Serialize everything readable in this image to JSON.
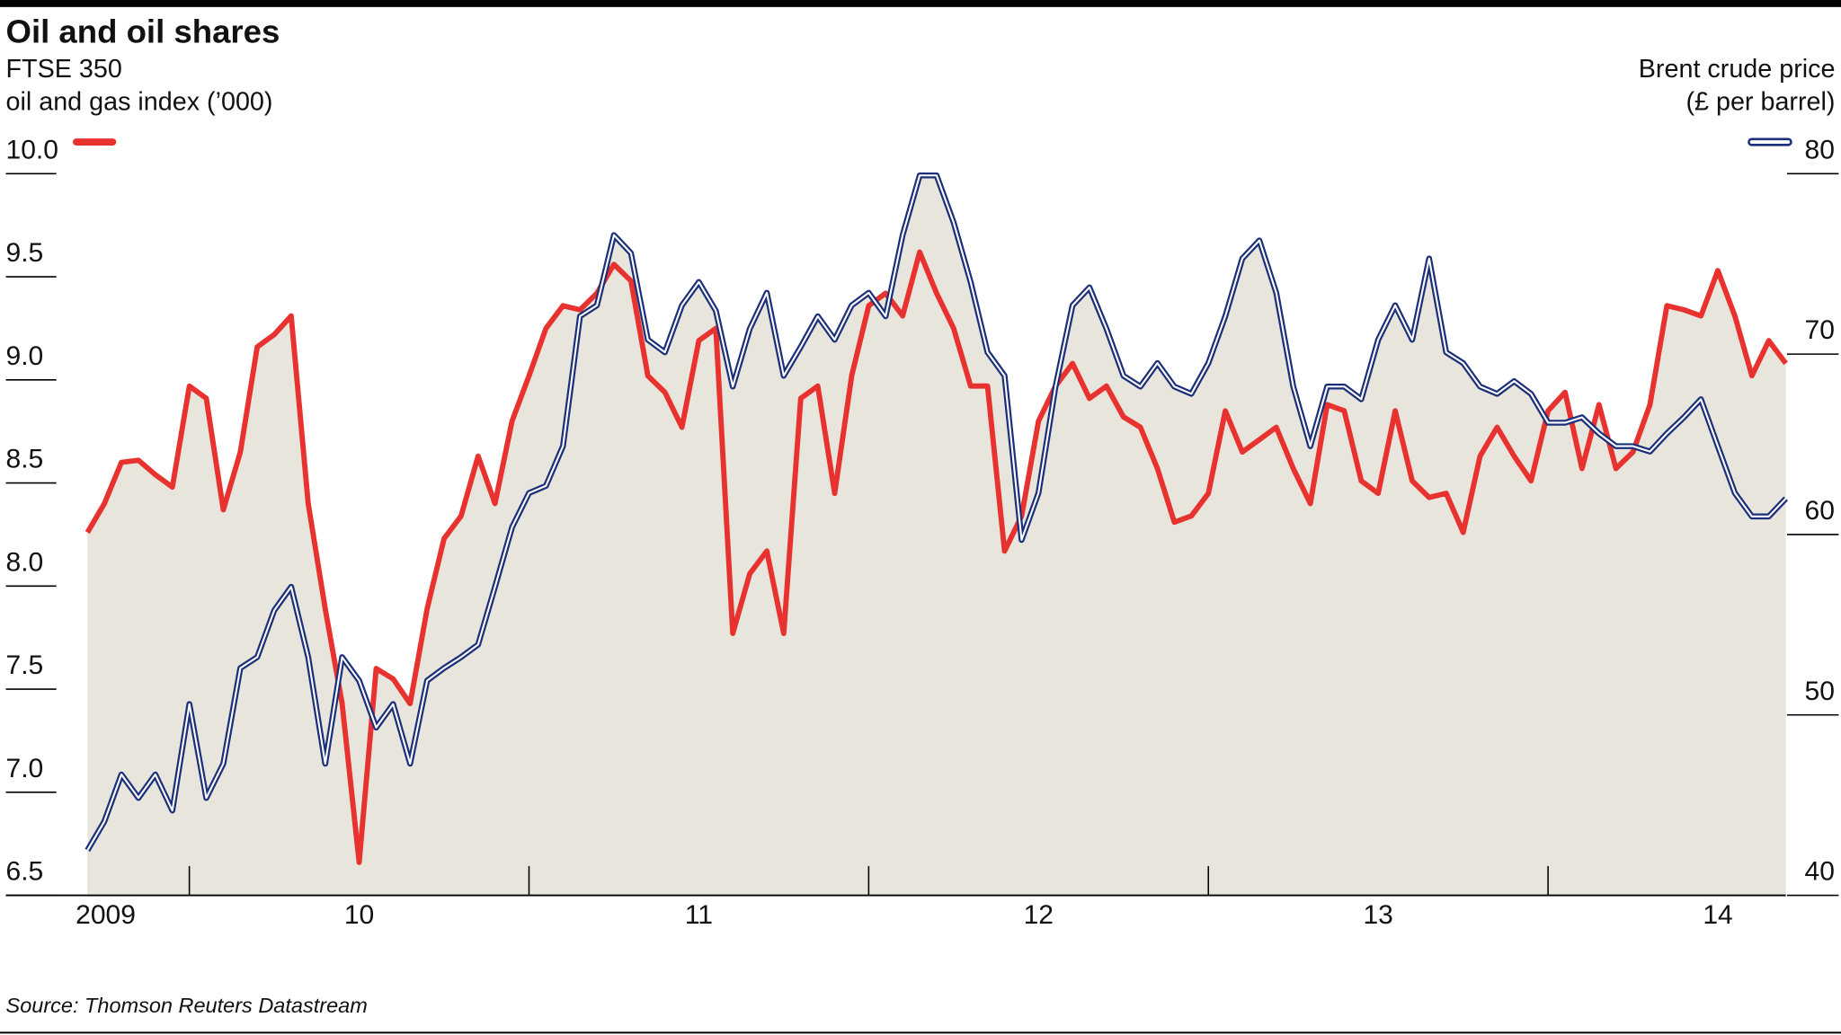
{
  "chart_data": {
    "type": "line",
    "title": "Oil and oil shares",
    "y_label": [
      "FTSE 350",
      "oil and gas index (’000)"
    ],
    "y2_label": [
      "Brent crude price",
      "(£ per barrel)"
    ],
    "source": "Source: Thomson Reuters Datastream",
    "x": [
      2009.2,
      2009.25,
      2009.3,
      2009.35,
      2009.4,
      2009.45,
      2009.5,
      2009.55,
      2009.6,
      2009.65,
      2009.7,
      2009.75,
      2009.8,
      2009.85,
      2009.9,
      2009.95,
      2010,
      2010.05,
      2010.1,
      2010.15,
      2010.2,
      2010.25,
      2010.3,
      2010.35,
      2010.4,
      2010.45,
      2010.5,
      2010.55,
      2010.6,
      2010.65,
      2010.7,
      2010.75,
      2010.8,
      2010.85,
      2010.9,
      2010.95,
      2011,
      2011.05,
      2011.1,
      2011.15,
      2011.2,
      2011.25,
      2011.3,
      2011.35,
      2011.4,
      2011.45,
      2011.5,
      2011.55,
      2011.6,
      2011.65,
      2011.7,
      2011.75,
      2011.8,
      2011.85,
      2011.9,
      2011.95,
      2012,
      2012.05,
      2012.1,
      2012.15,
      2012.2,
      2012.25,
      2012.3,
      2012.35,
      2012.4,
      2012.45,
      2012.5,
      2012.55,
      2012.6,
      2012.65,
      2012.7,
      2012.75,
      2012.8,
      2012.85,
      2012.9,
      2012.95,
      2013,
      2013.05,
      2013.1,
      2013.15,
      2013.2,
      2013.25,
      2013.3,
      2013.35,
      2013.4,
      2013.45,
      2013.5,
      2013.55,
      2013.6,
      2013.65,
      2013.7,
      2013.75,
      2013.8,
      2013.85,
      2013.9,
      2013.95,
      2014,
      2014.05,
      2014.1,
      2014.15,
      2014.2
    ],
    "series": [
      {
        "color": "#e8322f",
        "axis": "y",
        "values": [
          8.26,
          8.4,
          8.6,
          8.61,
          8.54,
          8.48,
          8.97,
          8.91,
          8.37,
          8.65,
          9.16,
          9.22,
          9.31,
          8.4,
          7.89,
          7.43,
          6.66,
          7.6,
          7.55,
          7.43,
          7.89,
          8.23,
          8.34,
          8.63,
          8.4,
          8.8,
          9.02,
          9.25,
          9.36,
          9.34,
          9.42,
          9.56,
          9.48,
          9.02,
          8.94,
          8.77,
          9.19,
          9.25,
          7.77,
          8.06,
          8.17,
          7.77,
          8.91,
          8.97,
          8.45,
          9.02,
          9.36,
          9.42,
          9.31,
          9.62,
          9.42,
          9.25,
          8.97,
          8.97,
          8.17,
          8.34,
          8.8,
          8.97,
          9.08,
          8.91,
          8.97,
          8.82,
          8.77,
          8.57,
          8.31,
          8.34,
          8.45,
          8.85,
          8.65,
          8.71,
          8.77,
          8.57,
          8.4,
          8.88,
          8.85,
          8.51,
          8.45,
          8.85,
          8.51,
          8.43,
          8.45,
          8.26,
          8.63,
          8.77,
          8.63,
          8.51,
          8.85,
          8.94,
          8.57,
          8.88,
          8.57,
          8.65,
          8.88,
          9.36,
          9.34,
          9.31,
          9.53,
          9.31,
          9.02,
          9.19,
          9.08
        ]
      },
      {
        "color": "#1c2f7a",
        "axis": "y2",
        "values": [
          42.5,
          44.1,
          46.7,
          45.4,
          46.7,
          44.7,
          50.6,
          45.4,
          47.3,
          52.6,
          53.2,
          55.8,
          57.1,
          53.2,
          47.3,
          53.2,
          51.9,
          49.3,
          50.6,
          47.3,
          51.9,
          52.6,
          53.2,
          53.9,
          57.1,
          60.4,
          62.3,
          62.7,
          64.9,
          72.1,
          72.7,
          76.6,
          75.6,
          70.8,
          70.1,
          72.7,
          74,
          72.4,
          68.2,
          71.4,
          73.4,
          68.8,
          70.4,
          72.1,
          70.8,
          72.7,
          73.4,
          72.1,
          76.6,
          79.9,
          79.9,
          77.3,
          74,
          70.1,
          68.8,
          59.7,
          62.3,
          68.2,
          72.7,
          73.7,
          71.4,
          68.8,
          68.2,
          69.5,
          68.2,
          67.8,
          69.5,
          72.1,
          75.3,
          76.3,
          73.4,
          68.2,
          64.9,
          68.2,
          68.2,
          67.5,
          70.8,
          72.7,
          70.8,
          75.3,
          70.1,
          69.5,
          68.2,
          67.8,
          68.5,
          67.8,
          66.2,
          66.2,
          66.5,
          65.6,
          64.9,
          64.9,
          64.6,
          65.6,
          66.5,
          67.5,
          64.9,
          62.3,
          61,
          61,
          62
        ]
      }
    ],
    "xlim": [
      2009.15,
      2014.2
    ],
    "xticks": [
      {
        "value": 2009,
        "label": "2009"
      },
      {
        "value": 2010,
        "label": "10"
      },
      {
        "value": 2011,
        "label": "11"
      },
      {
        "value": 2012,
        "label": "12"
      },
      {
        "value": 2013,
        "label": "13"
      },
      {
        "value": 2014,
        "label": "14"
      }
    ],
    "ylim": [
      6.5,
      10
    ],
    "yticks": [
      6.5,
      {
        "value": 7,
        "label": "7.0"
      },
      7.5,
      {
        "value": 8,
        "label": "8.0"
      },
      8.5,
      {
        "value": 9,
        "label": "9.0"
      },
      9.5,
      {
        "value": 10,
        "label": "10.0"
      }
    ],
    "y2lim": [
      40,
      80
    ],
    "y2ticks": [
      40,
      50,
      60,
      70,
      80
    ],
    "area_color": "#e8e5dc"
  }
}
